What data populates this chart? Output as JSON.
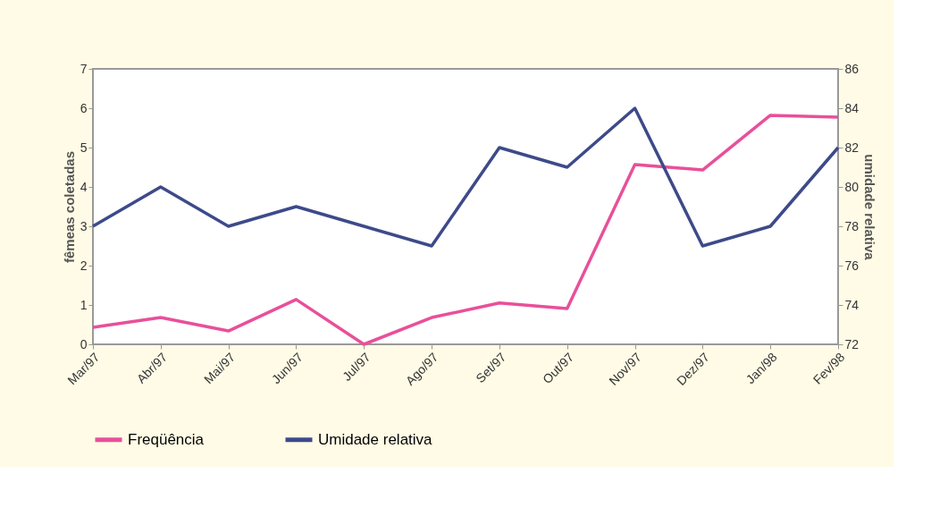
{
  "chart_data": {
    "type": "line",
    "ylabel": "fêmeas coletadas",
    "y2label": "umidade relativa",
    "categories": [
      "Mar/97",
      "Abr/97",
      "Mai/97",
      "Jun/97",
      "Jul/97",
      "Ago/97",
      "Set/97",
      "Out/97",
      "Nov/97",
      "Dez/97",
      "Jan/98",
      "Fev/98"
    ],
    "series": [
      {
        "name": "Freqüência",
        "color": "#e8509a",
        "values": [
          0.43,
          0.68,
          0.34,
          1.14,
          0,
          0.68,
          1.05,
          0.91,
          4.57,
          4.43,
          5.82,
          5.77
        ]
      },
      {
        "name": "Umidade relativa",
        "color": "#3d4a8a",
        "axis": "y2",
        "values": [
          78,
          80,
          78,
          79,
          78,
          77,
          82,
          81,
          84,
          77,
          78,
          82
        ]
      }
    ],
    "ylim": [
      0,
      7
    ],
    "yticks": [
      0,
      1,
      2,
      3,
      4,
      5,
      6,
      7
    ],
    "y2lim": [
      72,
      86
    ],
    "y2ticks": [
      72,
      74,
      76,
      78,
      80,
      82,
      84,
      86
    ],
    "grid": false,
    "legend": "bottom",
    "marker": "none",
    "line_style": "solid"
  }
}
